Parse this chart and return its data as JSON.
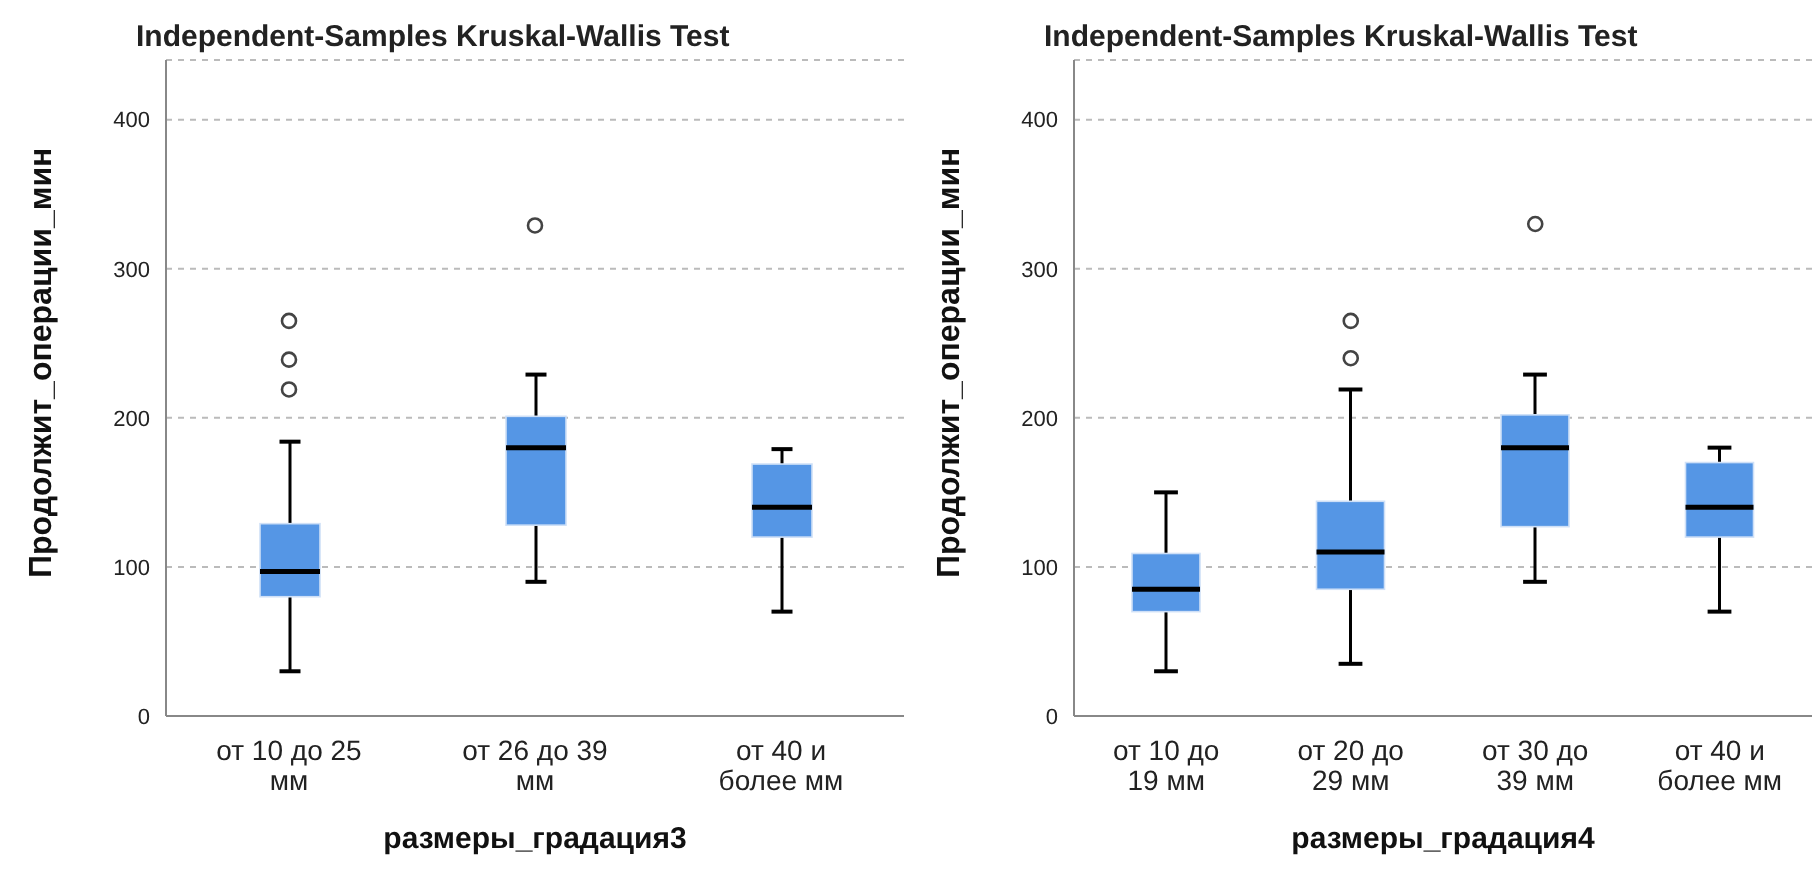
{
  "chart_data": [
    {
      "type": "box",
      "title": "Independent-Samples Kruskal-Wallis Test",
      "xlabel": "размеры_градация3",
      "ylabel": "Продолжит_операции_мин",
      "categories": [
        "от 10 до 25 мм",
        "от 26 до 39 мм",
        "от 40 и более мм"
      ],
      "color": "#5596e5",
      "ylim": [
        0,
        440
      ],
      "yticks": [
        0,
        100,
        200,
        300,
        400
      ],
      "grid": "y",
      "boxes": [
        {
          "low": 30,
          "q1": 80,
          "median": 97,
          "q3": 129,
          "high": 184,
          "outliers": [
            219,
            239,
            265
          ]
        },
        {
          "low": 90,
          "q1": 128,
          "median": 180,
          "q3": 201,
          "high": 229,
          "outliers": [
            329
          ]
        },
        {
          "low": 70,
          "q1": 120,
          "median": 140,
          "q3": 169,
          "high": 179
        }
      ]
    },
    {
      "type": "box",
      "title": "Independent-Samples Kruskal-Wallis Test",
      "xlabel": "размеры_градация4",
      "ylabel": "Продолжит_операции_мин",
      "categories": [
        "от 10 до 19 мм",
        "от 20 до 29 мм",
        "от 30 до 39 мм",
        "от 40 и более мм"
      ],
      "color": "#5596e5",
      "ylim": [
        0,
        440
      ],
      "yticks": [
        0,
        100,
        200,
        300,
        400
      ],
      "grid": "y",
      "boxes": [
        {
          "low": 30,
          "q1": 70,
          "median": 85,
          "q3": 109,
          "high": 150
        },
        {
          "low": 35,
          "q1": 85,
          "median": 110,
          "q3": 144,
          "high": 219,
          "outliers": [
            240,
            265
          ]
        },
        {
          "low": 90,
          "q1": 127,
          "median": 180,
          "q3": 202,
          "high": 229,
          "outliers": [
            330
          ]
        },
        {
          "low": 70,
          "q1": 120,
          "median": 140,
          "q3": 170,
          "high": 180
        }
      ]
    }
  ]
}
